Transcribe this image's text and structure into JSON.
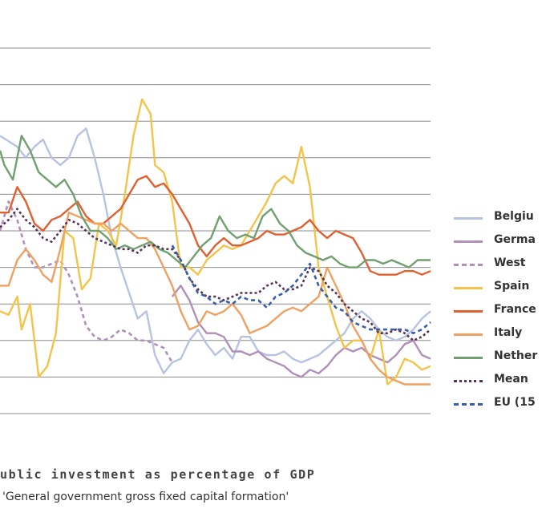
{
  "caption": {
    "title": "ublic investment as percentage of GDP",
    "subtitle": "'General government gross fixed capital formation'"
  },
  "chart_data": {
    "type": "line",
    "ylim": [
      0,
      10
    ],
    "xlim": [
      0,
      100
    ],
    "grid": true,
    "legend_position": "right",
    "series": [
      {
        "name": "Belgiu",
        "color": "#b7c3e0",
        "dash": "solid",
        "x": [
          0,
          4,
          6,
          8,
          10,
          12,
          14,
          16,
          18,
          20,
          22,
          24,
          26,
          28,
          30,
          32,
          34,
          36,
          38,
          40,
          42,
          44,
          46,
          48,
          50,
          52,
          54,
          56,
          58,
          60,
          62,
          64,
          66,
          68,
          70,
          72,
          74,
          76,
          78,
          80,
          82,
          84,
          86,
          88,
          90,
          92,
          94,
          96,
          98,
          100
        ],
        "y": [
          7.6,
          7.3,
          7.0,
          7.3,
          7.5,
          7.0,
          6.8,
          7.0,
          7.6,
          7.8,
          7.0,
          6.0,
          4.8,
          4.0,
          3.3,
          2.6,
          2.8,
          1.6,
          1.1,
          1.4,
          1.5,
          2.0,
          2.3,
          1.9,
          1.6,
          1.8,
          1.5,
          2.1,
          2.1,
          1.7,
          1.6,
          1.6,
          1.7,
          1.5,
          1.4,
          1.5,
          1.6,
          1.8,
          2.0,
          2.2,
          2.6,
          2.8,
          2.6,
          2.3,
          2.1,
          2.0,
          2.1,
          2.3,
          2.6,
          2.8
        ]
      },
      {
        "name": "Germa",
        "color": "#b090b8",
        "dash": "solid",
        "x": [
          40,
          42,
          44,
          46,
          48,
          50,
          52,
          54,
          56,
          58,
          60,
          62,
          64,
          66,
          68,
          70,
          72,
          74,
          76,
          78,
          80,
          82,
          84,
          86,
          88,
          90,
          92,
          94,
          96,
          98,
          100
        ],
        "y": [
          3.2,
          3.5,
          3.1,
          2.5,
          2.2,
          2.2,
          2.1,
          1.7,
          1.7,
          1.6,
          1.7,
          1.5,
          1.4,
          1.3,
          1.1,
          1.0,
          1.2,
          1.1,
          1.3,
          1.6,
          1.8,
          1.7,
          1.8,
          1.6,
          1.5,
          1.4,
          1.6,
          1.9,
          2.0,
          1.6,
          1.5
        ]
      },
      {
        "name": "West",
        "color": "#b090b8",
        "dash": "dash",
        "x": [
          0,
          2,
          4,
          6,
          8,
          10,
          12,
          14,
          16,
          18,
          20,
          22,
          24,
          26,
          28,
          30,
          32,
          34,
          36,
          38,
          40
        ],
        "y": [
          5.0,
          5.8,
          5.3,
          4.5,
          4.0,
          4.0,
          4.1,
          4.2,
          3.8,
          3.2,
          2.4,
          2.1,
          2.0,
          2.1,
          2.3,
          2.2,
          2.0,
          2.0,
          1.9,
          1.8,
          1.4
        ]
      },
      {
        "name": "Spain",
        "color": "#f4c44a",
        "dash": "solid",
        "x": [
          0,
          2,
          4,
          5,
          7,
          9,
          11,
          13,
          15,
          17,
          19,
          21,
          23,
          25,
          27,
          29,
          31,
          33,
          35,
          36,
          38,
          40,
          42,
          44,
          46,
          48,
          50,
          52,
          54,
          56,
          58,
          60,
          62,
          64,
          66,
          68,
          70,
          72,
          74,
          76,
          78,
          80,
          82,
          84,
          86,
          88,
          90,
          92,
          94,
          96,
          98,
          100
        ],
        "y": [
          2.8,
          2.7,
          3.2,
          2.3,
          3.0,
          1.0,
          1.3,
          2.2,
          5.0,
          4.8,
          3.4,
          3.7,
          5.2,
          5.0,
          4.6,
          6.0,
          7.6,
          8.6,
          8.2,
          6.8,
          6.6,
          5.8,
          4.0,
          4.0,
          3.8,
          4.2,
          4.4,
          4.6,
          4.5,
          4.6,
          5.0,
          5.4,
          5.8,
          6.3,
          6.5,
          6.3,
          7.3,
          6.2,
          4.0,
          3.2,
          2.4,
          1.8,
          2.0,
          2.0,
          1.5,
          2.3,
          0.8,
          1.0,
          1.5,
          1.4,
          1.2,
          1.3
        ]
      },
      {
        "name": "France",
        "color": "#e06030",
        "dash": "solid",
        "x": [
          0,
          2,
          4,
          6,
          8,
          10,
          12,
          14,
          16,
          18,
          20,
          22,
          24,
          26,
          28,
          30,
          32,
          34,
          36,
          38,
          40,
          42,
          44,
          46,
          48,
          50,
          52,
          54,
          56,
          58,
          60,
          62,
          64,
          66,
          68,
          70,
          72,
          74,
          76,
          78,
          80,
          82,
          84,
          86,
          88,
          90,
          92,
          94,
          96,
          98,
          100
        ],
        "y": [
          5.5,
          5.5,
          6.2,
          5.8,
          5.2,
          5.0,
          5.3,
          5.4,
          5.6,
          5.8,
          5.4,
          5.2,
          5.2,
          5.4,
          5.6,
          6.0,
          6.4,
          6.5,
          6.2,
          6.3,
          6.0,
          5.6,
          5.2,
          4.6,
          4.3,
          4.6,
          4.8,
          4.6,
          4.6,
          4.7,
          4.8,
          5.0,
          4.9,
          4.9,
          5.0,
          5.1,
          5.3,
          5.0,
          4.8,
          5.0,
          4.9,
          4.8,
          4.4,
          3.9,
          3.8,
          3.8,
          3.8,
          3.9,
          3.9,
          3.8,
          3.9
        ]
      },
      {
        "name": "Italy",
        "color": "#f0a060",
        "dash": "solid",
        "x": [
          0,
          2,
          4,
          6,
          8,
          10,
          12,
          14,
          16,
          18,
          20,
          22,
          24,
          26,
          28,
          30,
          32,
          34,
          36,
          38,
          40,
          42,
          44,
          46,
          48,
          50,
          52,
          54,
          56,
          58,
          60,
          62,
          64,
          66,
          68,
          70,
          72,
          74,
          76,
          78,
          80,
          82,
          84,
          86,
          88,
          90,
          92,
          94,
          96,
          98,
          100
        ],
        "y": [
          3.5,
          3.5,
          4.2,
          4.5,
          4.2,
          3.8,
          3.6,
          4.5,
          5.5,
          5.4,
          5.3,
          5.2,
          5.2,
          5.0,
          5.2,
          5.0,
          4.8,
          4.8,
          4.5,
          4.0,
          3.5,
          2.8,
          2.3,
          2.4,
          2.8,
          2.7,
          2.8,
          3.0,
          2.7,
          2.2,
          2.3,
          2.4,
          2.6,
          2.8,
          2.9,
          2.8,
          3.0,
          3.2,
          4.0,
          3.5,
          3.0,
          2.4,
          2.0,
          1.5,
          1.2,
          1.0,
          0.9,
          0.8,
          0.8,
          0.8,
          0.8
        ]
      },
      {
        "name": "Nether",
        "color": "#70a070",
        "dash": "solid",
        "x": [
          0,
          1,
          3,
          5,
          7,
          9,
          11,
          13,
          15,
          17,
          19,
          21,
          23,
          25,
          27,
          29,
          31,
          33,
          35,
          37,
          39,
          41,
          43,
          45,
          47,
          49,
          51,
          53,
          55,
          57,
          59,
          61,
          63,
          65,
          67,
          69,
          71,
          73,
          75,
          77,
          79,
          81,
          83,
          85,
          87,
          89,
          91,
          93,
          95,
          97,
          100
        ],
        "y": [
          7.2,
          6.8,
          6.4,
          7.6,
          7.2,
          6.6,
          6.4,
          6.2,
          6.4,
          6.0,
          5.4,
          5.0,
          5.0,
          4.8,
          4.5,
          4.6,
          4.5,
          4.6,
          4.7,
          4.5,
          4.4,
          4.2,
          4.0,
          4.3,
          4.6,
          4.8,
          5.4,
          5.0,
          4.8,
          4.9,
          4.8,
          5.4,
          5.6,
          5.2,
          5.0,
          4.6,
          4.4,
          4.3,
          4.2,
          4.3,
          4.1,
          4.0,
          4.0,
          4.2,
          4.2,
          4.1,
          4.2,
          4.1,
          4.0,
          4.2,
          4.2
        ]
      },
      {
        "name": "Mean",
        "color": "#553355",
        "dash": "dot",
        "x": [
          0,
          2,
          4,
          6,
          8,
          10,
          12,
          14,
          16,
          18,
          20,
          22,
          24,
          26,
          28,
          30,
          32,
          34,
          36,
          38,
          40,
          42,
          44,
          46,
          48,
          50,
          52,
          54,
          56,
          58,
          60,
          62,
          64,
          66,
          68,
          70,
          72,
          74,
          76,
          78,
          80,
          82,
          84,
          86,
          88,
          90,
          92,
          94,
          96,
          98,
          100
        ],
        "y": [
          5.1,
          5.3,
          5.6,
          5.3,
          5.1,
          4.8,
          4.7,
          5.0,
          5.3,
          5.2,
          5.0,
          4.8,
          4.7,
          4.6,
          4.5,
          4.5,
          4.4,
          4.6,
          4.6,
          4.5,
          4.5,
          4.2,
          3.7,
          3.4,
          3.2,
          3.2,
          3.1,
          3.2,
          3.3,
          3.3,
          3.3,
          3.5,
          3.6,
          3.4,
          3.4,
          3.5,
          4.0,
          3.9,
          3.5,
          3.3,
          3.0,
          2.8,
          2.6,
          2.5,
          2.2,
          2.2,
          2.3,
          2.2,
          2.0,
          2.1,
          2.3
        ]
      },
      {
        "name": "EU (15",
        "color": "#3a5ea8",
        "dash": "dash",
        "x": [
          40,
          42,
          44,
          46,
          48,
          50,
          52,
          54,
          56,
          58,
          60,
          62,
          64,
          66,
          68,
          70,
          72,
          74,
          76,
          78,
          80,
          82,
          84,
          86,
          88,
          90,
          92,
          94,
          96,
          98,
          100
        ],
        "y": [
          4.6,
          4.2,
          3.7,
          3.3,
          3.2,
          3.0,
          3.1,
          3.0,
          3.2,
          3.1,
          3.1,
          2.9,
          3.2,
          3.3,
          3.5,
          3.8,
          4.1,
          3.5,
          3.2,
          2.9,
          2.8,
          2.5,
          2.4,
          2.3,
          2.3,
          2.3,
          2.3,
          2.3,
          2.2,
          2.3,
          2.5
        ]
      }
    ]
  }
}
